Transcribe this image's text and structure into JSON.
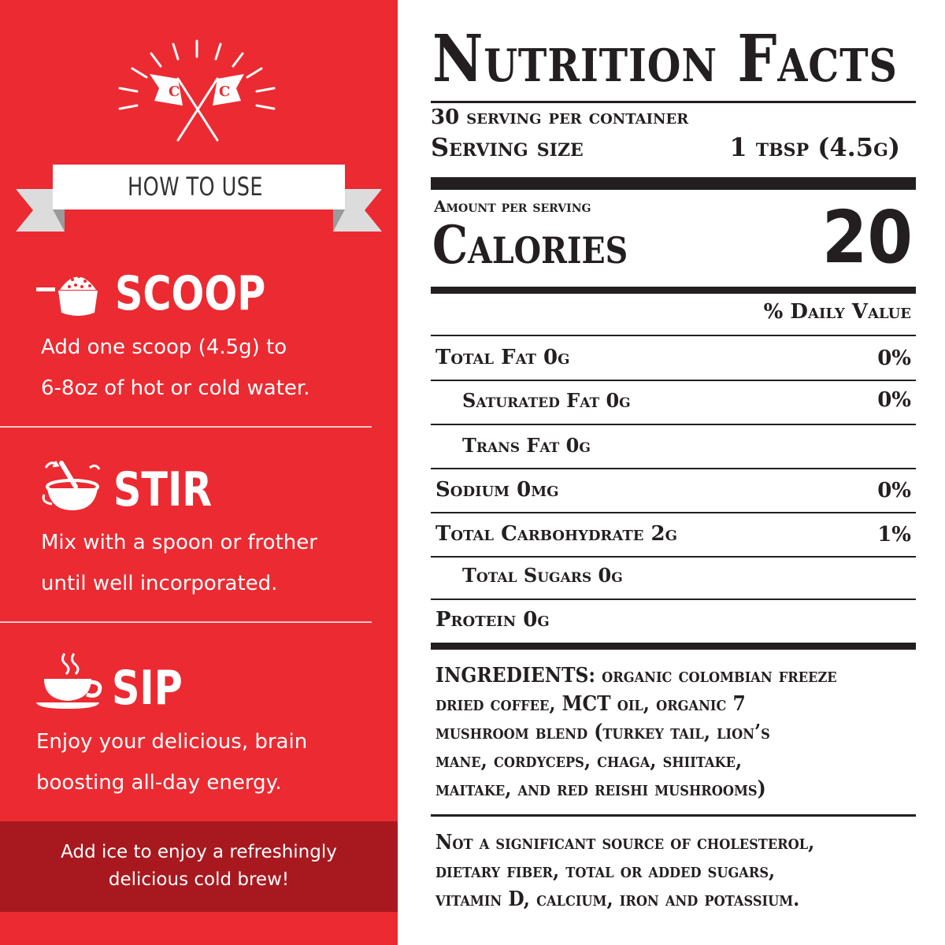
{
  "how_to_use": {
    "banner": "HOW TO USE",
    "steps": [
      {
        "title": "SCOOP",
        "lines": [
          "Add one scoop (4.5g) to",
          "6-8oz of hot or cold water."
        ]
      },
      {
        "title": "STIR",
        "lines": [
          "Mix with a spoon or frother",
          "until well incorporated."
        ]
      },
      {
        "title": "SIP",
        "lines": [
          "Enjoy your delicious, brain",
          "boosting all-day energy."
        ]
      }
    ],
    "tip": [
      "Add ice to enjoy a refreshingly",
      "delicious cold brew!"
    ],
    "logo_letters": [
      "C",
      "C"
    ]
  },
  "nutrition": {
    "title": "Nutrition Facts",
    "servings": "30 serving per container",
    "serving_size_label": "Serving size",
    "serving_size_value": "1 tbsp (4.5g)",
    "amount_per_serving": "Amount per serving",
    "calories_label": "Calories",
    "calories_value": "20",
    "daily_value_header": "% Daily Value",
    "rows": [
      {
        "label": "Total Fat 0g",
        "pct": "0%"
      },
      {
        "label": "Saturated Fat 0g",
        "pct": "0%"
      },
      {
        "label": "Trans Fat 0g",
        "pct": ""
      },
      {
        "label": "Sodium 0mg",
        "pct": "0%"
      },
      {
        "label": "Total Carbohydrate 2g",
        "pct": "1%"
      },
      {
        "label": "Total Sugars 0g",
        "pct": ""
      },
      {
        "label": "Protein 0g",
        "pct": ""
      }
    ],
    "ingredients": [
      "INGREDIENTS: organic colombian freeze",
      "dried coffee, MCT oil, organic 7",
      "mushroom blend (turkey tail, lion’s",
      "mane, cordyceps, chaga, shiitake,",
      "maitake, and red reishi mushrooms)"
    ],
    "disclaimer": [
      "Not a significant source of cholesterol,",
      "dietary fiber, total or added sugars,",
      "vitamin D, calcium, iron and potassium."
    ]
  },
  "colors": {
    "panel_red": "#ec2a31",
    "tip_red": "#a8191f",
    "ink": "#231f20"
  }
}
